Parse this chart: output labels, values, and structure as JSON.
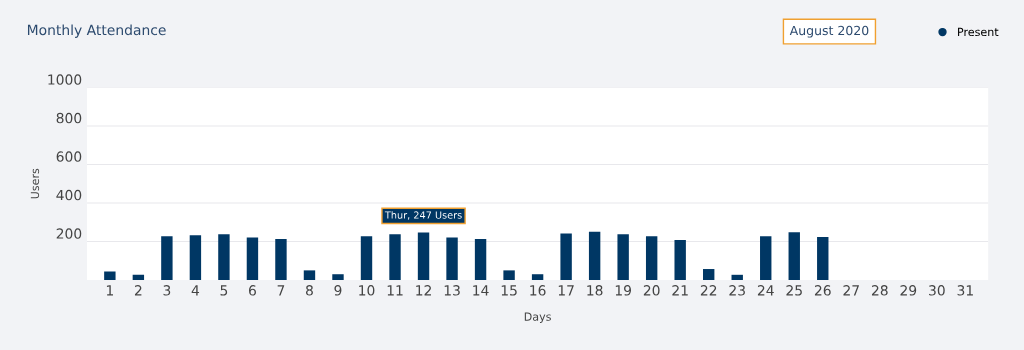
{
  "chart_data": {
    "type": "bar",
    "title": "Monthly Attendance",
    "subtitle": "August 2020",
    "xlabel": "Days",
    "ylabel": "Users",
    "categories": [
      "1",
      "2",
      "3",
      "4",
      "5",
      "6",
      "7",
      "8",
      "9",
      "10",
      "11",
      "12",
      "13",
      "14",
      "15",
      "16",
      "17",
      "18",
      "19",
      "20",
      "21",
      "22",
      "23",
      "24",
      "25",
      "26",
      "27",
      "28",
      "29",
      "30",
      "31"
    ],
    "series": [
      {
        "name": "Present",
        "color": "#003764",
        "values": [
          44,
          27,
          227,
          232,
          238,
          221,
          213,
          50,
          30,
          227,
          238,
          247,
          221,
          213,
          50,
          30,
          242,
          251,
          238,
          227,
          208,
          57,
          27,
          227,
          248,
          223,
          null,
          null,
          null,
          null,
          null
        ]
      }
    ],
    "annotations": [
      {
        "text": "Thur, 247 Users",
        "x": "12",
        "y": 247
      }
    ],
    "ylim": [
      0,
      1000
    ],
    "yticks": [
      200,
      400,
      600,
      800,
      1000
    ],
    "grid": "y",
    "legend": "top right"
  }
}
